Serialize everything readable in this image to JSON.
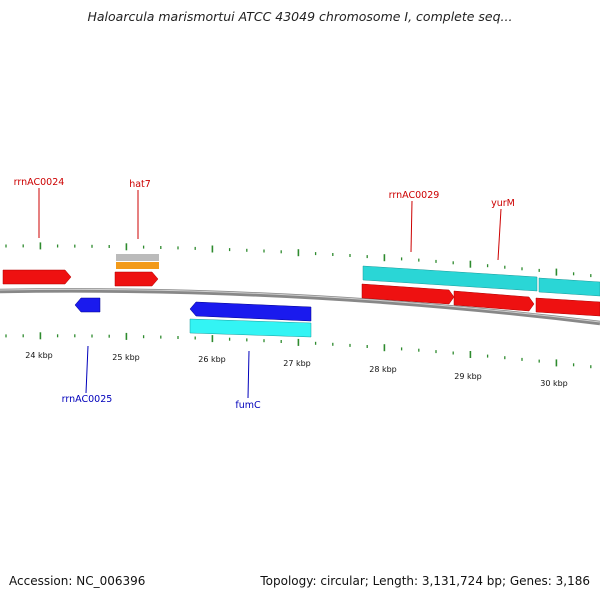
{
  "title": "Haloarcula marismortui ATCC 43049 chromosome I, complete seq...",
  "footer": {
    "accession": "Accession: NC_006396",
    "stats": "Topology: circular; Length: 3,131,724 bp; Genes: 3,186"
  },
  "scale": {
    "unit": "kbp",
    "labels": [
      "24 kbp",
      "25 kbp",
      "26 kbp",
      "27 kbp",
      "28 kbp",
      "29 kbp",
      "30 kbp"
    ]
  },
  "gene_labels": [
    {
      "text": "rrnAC0024",
      "strand": "+"
    },
    {
      "text": "hat7",
      "strand": "+"
    },
    {
      "text": "rrnAC0029",
      "strand": "+"
    },
    {
      "text": "yurM",
      "strand": "+"
    },
    {
      "text": "rrnAC0025",
      "strand": "-"
    },
    {
      "text": "fumC",
      "strand": "-"
    }
  ],
  "colors": {
    "plus_strand_label": "#cc0000",
    "minus_strand_label": "#0000bb",
    "gene_red": "#ee1111",
    "gene_blue": "#1a1aee",
    "gene_cyan": "#2ad6d6",
    "gene_cyan_light": "#33f4f4",
    "gene_gray": "#bbbbbb",
    "gene_orange": "#f29a1a",
    "backbone": "#888888",
    "tick_green": "#2e8b2e"
  }
}
